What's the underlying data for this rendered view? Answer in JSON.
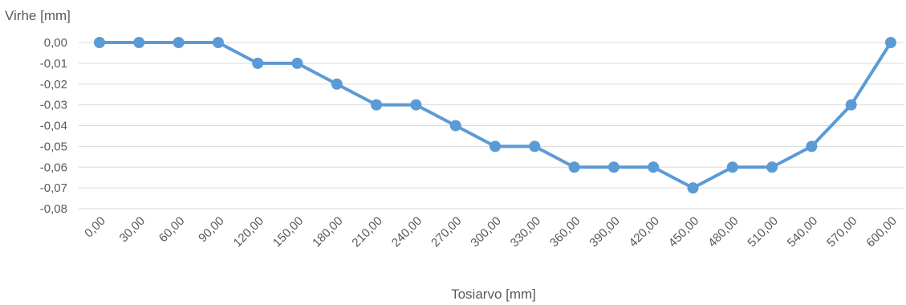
{
  "chart_data": {
    "type": "line",
    "title": "",
    "ylabel": "Virhe [mm]",
    "xlabel": "Tosiarvo [mm]",
    "ylim": [
      -0.08,
      0.0
    ],
    "y_ticks": [
      "0,00",
      "-0,01",
      "-0,02",
      "-0,03",
      "-0,04",
      "-0,05",
      "-0,06",
      "-0,07",
      "-0,08"
    ],
    "categories": [
      "0,00",
      "30,00",
      "60,00",
      "90,00",
      "120,00",
      "150,00",
      "180,00",
      "210,00",
      "240,00",
      "270,00",
      "300,00",
      "330,00",
      "360,00",
      "390,00",
      "420,00",
      "450,00",
      "480,00",
      "510,00",
      "540,00",
      "570,00",
      "600,00"
    ],
    "series": [
      {
        "values": [
          0.0,
          0.0,
          0.0,
          0.0,
          -0.01,
          -0.01,
          -0.02,
          -0.03,
          -0.03,
          -0.04,
          -0.05,
          -0.05,
          -0.06,
          -0.06,
          -0.06,
          -0.07,
          -0.06,
          -0.06,
          -0.05,
          -0.03,
          0.0
        ]
      }
    ],
    "grid": true,
    "legend": "none",
    "color": "#5b9bd5"
  }
}
